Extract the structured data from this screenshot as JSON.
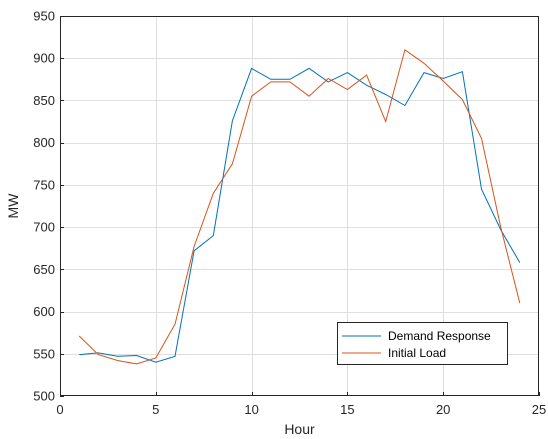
{
  "chart_data": {
    "type": "line",
    "xlabel": "Hour",
    "ylabel": "MW",
    "xlim": [
      0,
      25
    ],
    "ylim": [
      500,
      950
    ],
    "xticks": [
      0,
      5,
      10,
      15,
      20,
      25
    ],
    "yticks": [
      500,
      550,
      600,
      650,
      700,
      750,
      800,
      850,
      900,
      950
    ],
    "grid": true,
    "legend_position": "bottom-right",
    "x": [
      1,
      2,
      3,
      4,
      5,
      6,
      7,
      8,
      9,
      10,
      11,
      12,
      13,
      14,
      15,
      16,
      17,
      18,
      19,
      20,
      21,
      22,
      23,
      24
    ],
    "series": [
      {
        "name": "Demand Response",
        "color": "#0072BD",
        "values": [
          549,
          551,
          547,
          548,
          540,
          547,
          672,
          690,
          826,
          888,
          875,
          875,
          888,
          872,
          883,
          868,
          857,
          844,
          883,
          876,
          884,
          745,
          697,
          658
        ]
      },
      {
        "name": "Initial Load",
        "color": "#D95319",
        "values": [
          571,
          549,
          542,
          538,
          545,
          585,
          677,
          740,
          775,
          855,
          872,
          872,
          855,
          876,
          863,
          880,
          825,
          910,
          894,
          873,
          851,
          805,
          700,
          610
        ]
      }
    ]
  }
}
